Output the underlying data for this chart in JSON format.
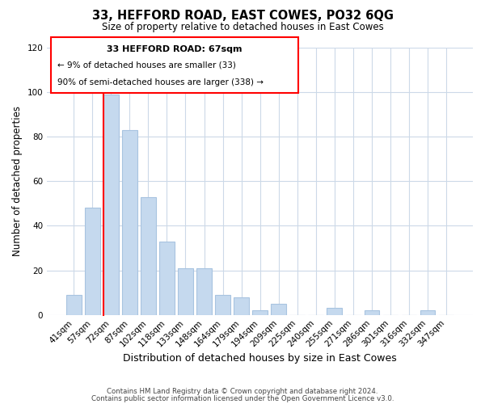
{
  "title": "33, HEFFORD ROAD, EAST COWES, PO32 6QG",
  "subtitle": "Size of property relative to detached houses in East Cowes",
  "xlabel": "Distribution of detached houses by size in East Cowes",
  "ylabel": "Number of detached properties",
  "footer1": "Contains HM Land Registry data © Crown copyright and database right 2024.",
  "footer2": "Contains public sector information licensed under the Open Government Licence v3.0.",
  "bar_labels": [
    "41sqm",
    "57sqm",
    "72sqm",
    "87sqm",
    "102sqm",
    "118sqm",
    "133sqm",
    "148sqm",
    "164sqm",
    "179sqm",
    "194sqm",
    "209sqm",
    "225sqm",
    "240sqm",
    "255sqm",
    "271sqm",
    "286sqm",
    "301sqm",
    "316sqm",
    "332sqm",
    "347sqm"
  ],
  "bar_values": [
    9,
    48,
    99,
    83,
    53,
    33,
    21,
    21,
    9,
    8,
    2,
    5,
    0,
    0,
    3,
    0,
    2,
    0,
    0,
    2,
    0
  ],
  "bar_color": "#c5d9ee",
  "bar_edge_color": "#a8c4e0",
  "marker_index": 2,
  "marker_color": "red",
  "annotation_title": "33 HEFFORD ROAD: 67sqm",
  "annotation_line1": "← 9% of detached houses are smaller (33)",
  "annotation_line2": "90% of semi-detached houses are larger (338) →",
  "ylim": [
    0,
    120
  ],
  "yticks": [
    0,
    20,
    40,
    60,
    80,
    100,
    120
  ],
  "background_color": "#ffffff",
  "grid_color": "#ccd9e8"
}
